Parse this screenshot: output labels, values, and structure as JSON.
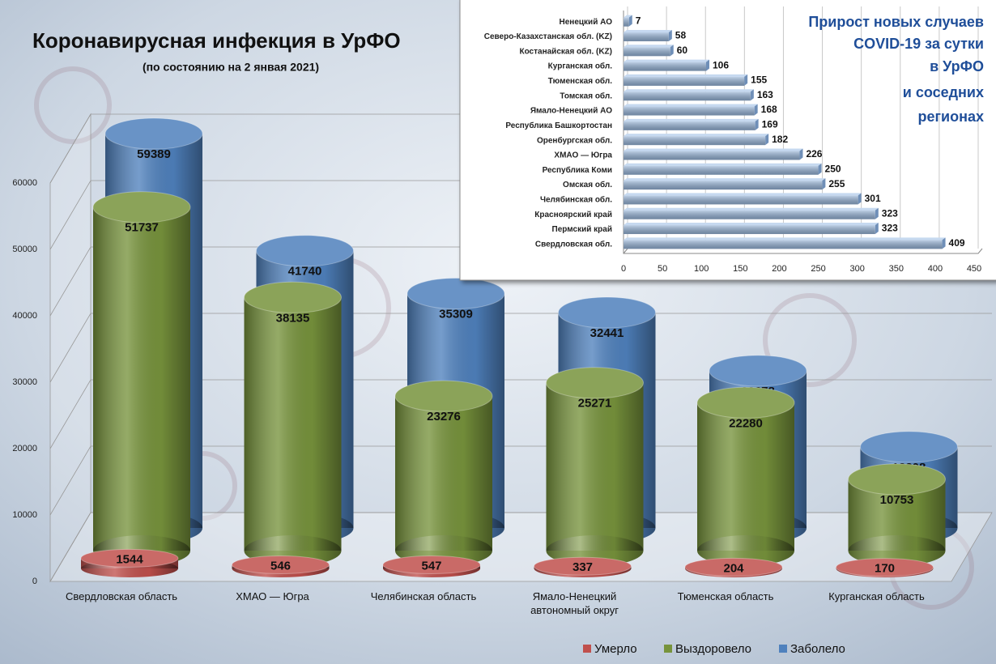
{
  "chart_data": [
    {
      "type": "bar",
      "title": "Коронавирусная инфекция в УрФО",
      "subtitle": "(по состоянию на 2 янвая 2021)",
      "categories": [
        "Свердловская область",
        "ХМАО — Югра",
        "Челябинская область",
        "Ямало-Ненецкий автономный округ",
        "Тюменская область",
        "Курганская область"
      ],
      "series": [
        {
          "name": "Умерло",
          "color": "#c0504d",
          "values": [
            1544,
            546,
            547,
            337,
            204,
            170
          ]
        },
        {
          "name": "Выздоровело",
          "color": "#77933c",
          "values": [
            51737,
            38135,
            23276,
            25271,
            22280,
            10753
          ]
        },
        {
          "name": "Заболело",
          "color": "#4f81bd",
          "values": [
            59389,
            41740,
            35309,
            32441,
            23678,
            12208
          ]
        }
      ],
      "ylim": [
        0,
        60000
      ],
      "yticks": [
        0,
        10000,
        20000,
        30000,
        40000,
        50000,
        60000
      ],
      "grid": true,
      "legend": "bottom"
    },
    {
      "type": "barh",
      "title": [
        "Прирост новых случаев",
        "COVID-19 за сутки",
        "в УрФО",
        "и соседних",
        "регионах"
      ],
      "categories": [
        "Ненецкий АО",
        "Северо-Казахстанская обл. (KZ)",
        "Костанайская обл. (KZ)",
        "Курганская обл.",
        "Тюменская обл.",
        "Томская обл.",
        "Ямало-Ненецкий АО",
        "Республика Башкортостан",
        "Оренбургская обл.",
        "ХМАО — Югра",
        "Республика Коми",
        "Омская обл.",
        "Челябинская обл.",
        "Красноярский край",
        "Пермский край",
        "Свердловская обл."
      ],
      "values": [
        7,
        58,
        60,
        106,
        155,
        163,
        168,
        169,
        182,
        226,
        250,
        255,
        301,
        323,
        323,
        409
      ],
      "color": "#95b3d7",
      "xlim": [
        0,
        450
      ],
      "xticks": [
        0,
        50,
        100,
        150,
        200,
        250,
        300,
        350,
        400,
        450
      ],
      "grid": true
    }
  ]
}
